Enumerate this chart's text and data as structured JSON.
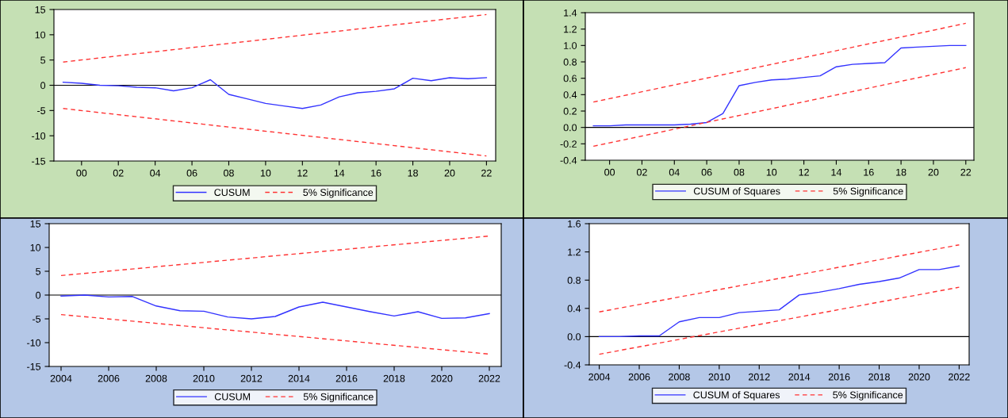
{
  "chart_data": [
    {
      "type": "line",
      "x": [
        1999,
        2000,
        2001,
        2002,
        2003,
        2004,
        2005,
        2006,
        2007,
        2008,
        2009,
        2010,
        2011,
        2012,
        2013,
        2014,
        2015,
        2016,
        2017,
        2018,
        2019,
        2020,
        2021,
        2022
      ],
      "series": [
        {
          "name": "CUSUM",
          "color": "#3333ff",
          "line_style": "solid",
          "values": [
            0.6,
            0.4,
            0.0,
            -0.1,
            -0.4,
            -0.5,
            -1.1,
            -0.5,
            1.1,
            -1.8,
            -2.7,
            -3.6,
            -4.1,
            -4.6,
            -3.9,
            -2.3,
            -1.5,
            -1.2,
            -0.7,
            1.4,
            0.9,
            1.5,
            1.3,
            1.5
          ]
        },
        {
          "name": "5% Significance",
          "color": "#ff3333",
          "line_style": "dashed",
          "x": [
            1999,
            2022
          ],
          "values": [
            4.6,
            14.0
          ]
        },
        {
          "color": "#ff3333",
          "line_style": "dashed",
          "x": [
            1999,
            2022
          ],
          "values": [
            -4.6,
            -14.0
          ]
        }
      ],
      "xlim": [
        1998.5,
        2022.5
      ],
      "xticks": [
        {
          "value": 2000,
          "label": "00"
        },
        {
          "value": 2002,
          "label": "02"
        },
        {
          "value": 2004,
          "label": "04"
        },
        {
          "value": 2006,
          "label": "06"
        },
        {
          "value": 2008,
          "label": "08"
        },
        {
          "value": 2010,
          "label": "10"
        },
        {
          "value": 2012,
          "label": "12"
        },
        {
          "value": 2014,
          "label": "14"
        },
        {
          "value": 2016,
          "label": "16"
        },
        {
          "value": 2018,
          "label": "18"
        },
        {
          "value": 2020,
          "label": "20"
        },
        {
          "value": 2022,
          "label": "22"
        }
      ],
      "ylim": [
        -15,
        15
      ],
      "yticks": [
        -15,
        -10,
        -5,
        0,
        5,
        10,
        15
      ],
      "ref_lines": [
        {
          "axis": "y",
          "value": 0,
          "color": "#000000"
        }
      ],
      "grid": false,
      "legend": "bottom"
    },
    {
      "type": "line",
      "x": [
        1999,
        2000,
        2001,
        2002,
        2003,
        2004,
        2005,
        2006,
        2007,
        2008,
        2009,
        2010,
        2011,
        2012,
        2013,
        2014,
        2015,
        2016,
        2017,
        2018,
        2019,
        2020,
        2021,
        2022
      ],
      "series": [
        {
          "name": "CUSUM of Squares",
          "color": "#3333ff",
          "line_style": "solid",
          "values": [
            0.02,
            0.02,
            0.03,
            0.03,
            0.03,
            0.03,
            0.04,
            0.06,
            0.17,
            0.51,
            0.55,
            0.58,
            0.59,
            0.61,
            0.63,
            0.74,
            0.77,
            0.78,
            0.79,
            0.97,
            0.98,
            0.99,
            1.0,
            1.0
          ]
        },
        {
          "name": "5% Significance",
          "color": "#ff3333",
          "line_style": "dashed",
          "x": [
            1999,
            2022
          ],
          "values": [
            0.31,
            1.27
          ]
        },
        {
          "color": "#ff3333",
          "line_style": "dashed",
          "x": [
            1999,
            2022
          ],
          "values": [
            -0.23,
            0.73
          ]
        }
      ],
      "xlim": [
        1998.5,
        2022.5
      ],
      "xticks": [
        {
          "value": 2000,
          "label": "00"
        },
        {
          "value": 2002,
          "label": "02"
        },
        {
          "value": 2004,
          "label": "04"
        },
        {
          "value": 2006,
          "label": "06"
        },
        {
          "value": 2008,
          "label": "08"
        },
        {
          "value": 2010,
          "label": "10"
        },
        {
          "value": 2012,
          "label": "12"
        },
        {
          "value": 2014,
          "label": "14"
        },
        {
          "value": 2016,
          "label": "16"
        },
        {
          "value": 2018,
          "label": "18"
        },
        {
          "value": 2020,
          "label": "20"
        },
        {
          "value": 2022,
          "label": "22"
        }
      ],
      "ylim": [
        -0.4,
        1.4
      ],
      "yticks": [
        {
          "value": -0.4,
          "label": "-0.4"
        },
        {
          "value": -0.2,
          "label": "-0.2"
        },
        {
          "value": 0,
          "label": "0.0"
        },
        {
          "value": 0.2,
          "label": "0.2"
        },
        {
          "value": 0.4,
          "label": "0.4"
        },
        {
          "value": 0.6,
          "label": "0.6"
        },
        {
          "value": 0.8,
          "label": "0.8"
        },
        {
          "value": 1.0,
          "label": "1.0"
        },
        {
          "value": 1.2,
          "label": "1.2"
        },
        {
          "value": 1.4,
          "label": "1.4"
        }
      ],
      "ref_lines": [
        {
          "axis": "y",
          "value": 0,
          "color": "#000000"
        }
      ],
      "grid": false,
      "legend": "bottom"
    },
    {
      "type": "line",
      "x": [
        2004,
        2005,
        2006,
        2007,
        2008,
        2009,
        2010,
        2011,
        2012,
        2013,
        2014,
        2015,
        2016,
        2017,
        2018,
        2019,
        2020,
        2021,
        2022
      ],
      "series": [
        {
          "name": "CUSUM",
          "color": "#3333ff",
          "line_style": "solid",
          "values": [
            -0.2,
            0.0,
            -0.4,
            -0.3,
            -2.3,
            -3.3,
            -3.4,
            -4.6,
            -5.0,
            -4.5,
            -2.5,
            -1.5,
            -2.5,
            -3.5,
            -4.4,
            -3.5,
            -4.9,
            -4.8,
            -3.9
          ]
        },
        {
          "name": "5% Significance",
          "color": "#ff3333",
          "line_style": "dashed",
          "x": [
            2004,
            2022
          ],
          "values": [
            4.1,
            12.4
          ]
        },
        {
          "color": "#ff3333",
          "line_style": "dashed",
          "x": [
            2004,
            2022
          ],
          "values": [
            -4.1,
            -12.4
          ]
        }
      ],
      "xlim": [
        2003.5,
        2022.5
      ],
      "xticks": [
        2004,
        2006,
        2008,
        2010,
        2012,
        2014,
        2016,
        2018,
        2020,
        2022
      ],
      "ylim": [
        -15,
        15
      ],
      "yticks": [
        -15,
        -10,
        -5,
        0,
        5,
        10,
        15
      ],
      "ref_lines": [
        {
          "axis": "y",
          "value": 0,
          "color": "#000000"
        }
      ],
      "grid": false,
      "legend": "bottom"
    },
    {
      "type": "line",
      "x": [
        2004,
        2005,
        2006,
        2007,
        2008,
        2009,
        2010,
        2011,
        2012,
        2013,
        2014,
        2015,
        2016,
        2017,
        2018,
        2019,
        2020,
        2021,
        2022
      ],
      "series": [
        {
          "name": "CUSUM of Squares",
          "color": "#3333ff",
          "line_style": "solid",
          "values": [
            0.0,
            0.0,
            0.01,
            0.01,
            0.21,
            0.27,
            0.27,
            0.34,
            0.36,
            0.38,
            0.59,
            0.63,
            0.68,
            0.74,
            0.78,
            0.83,
            0.95,
            0.95,
            1.0
          ]
        },
        {
          "name": "5% Significance",
          "color": "#ff3333",
          "line_style": "dashed",
          "x": [
            2004,
            2022
          ],
          "values": [
            0.35,
            1.3
          ]
        },
        {
          "color": "#ff3333",
          "line_style": "dashed",
          "x": [
            2004,
            2022
          ],
          "values": [
            -0.25,
            0.7
          ]
        }
      ],
      "xlim": [
        2003.5,
        2022.5
      ],
      "xticks": [
        2004,
        2006,
        2008,
        2010,
        2012,
        2014,
        2016,
        2018,
        2020,
        2022
      ],
      "ylim": [
        -0.4,
        1.6
      ],
      "yticks": [
        {
          "value": -0.4,
          "label": "-0.4"
        },
        {
          "value": 0,
          "label": "0.0"
        },
        {
          "value": 0.4,
          "label": "0.4"
        },
        {
          "value": 0.8,
          "label": "0.8"
        },
        {
          "value": 1.2,
          "label": "1.2"
        },
        {
          "value": 1.6,
          "label": "1.6"
        }
      ],
      "ref_lines": [
        {
          "axis": "y",
          "value": 0,
          "color": "#000000"
        }
      ],
      "grid": false,
      "legend": "bottom"
    }
  ]
}
